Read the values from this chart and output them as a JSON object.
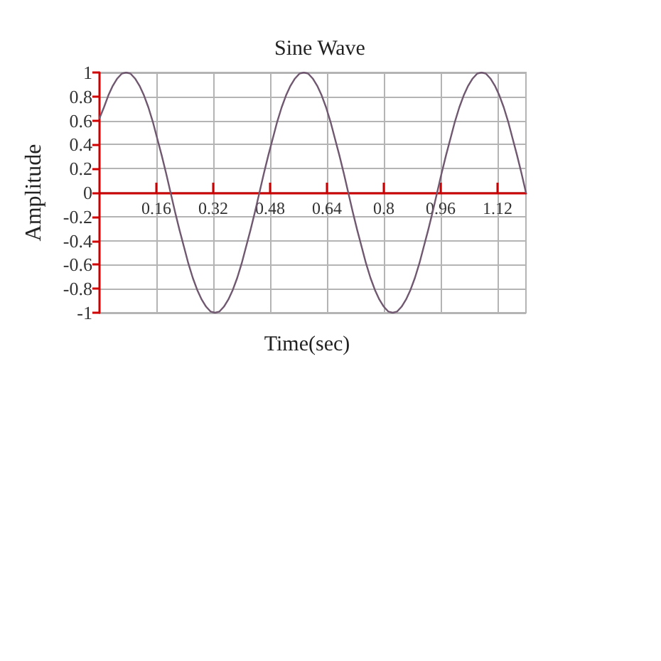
{
  "chart_data": {
    "type": "line",
    "title": "Sine Wave",
    "xlabel": "Time(sec)",
    "ylabel": "Amplitude",
    "x": [
      0,
      0.0125,
      0.025,
      0.0375,
      0.05,
      0.0625,
      0.075,
      0.0875,
      0.1,
      0.1125,
      0.125,
      0.1375,
      0.15,
      0.1625,
      0.175,
      0.1875,
      0.2,
      0.2125,
      0.225,
      0.2375,
      0.25,
      0.2625,
      0.275,
      0.2875,
      0.3,
      0.3125,
      0.325,
      0.3375,
      0.35,
      0.3625,
      0.375,
      0.3875,
      0.4,
      0.4125,
      0.425,
      0.4375,
      0.45,
      0.4625,
      0.475,
      0.4875,
      0.5,
      0.5125,
      0.525,
      0.5375,
      0.55,
      0.5625,
      0.575,
      0.5875,
      0.6,
      0.6125,
      0.625,
      0.6375,
      0.65,
      0.6625,
      0.675,
      0.6875,
      0.7,
      0.7125,
      0.725,
      0.7375,
      0.75,
      0.7625,
      0.775,
      0.7875,
      0.8,
      0.8125,
      0.825,
      0.8375,
      0.85,
      0.8625,
      0.875,
      0.8875,
      0.9,
      0.9125,
      0.925,
      0.9375,
      0.95,
      0.9625,
      0.975,
      0.9875,
      1,
      1.0125,
      1.025,
      1.0375,
      1.05,
      1.0625,
      1.075,
      1.0875,
      1.1,
      1.1125,
      1.125,
      1.1375,
      1.15,
      1.1625,
      1.175,
      1.1875,
      1.2
    ],
    "series": [
      {
        "color": "#705870",
        "values": [
          0.62,
          0.71,
          0.81,
          0.89,
          0.95,
          0.99,
          1,
          0.99,
          0.95,
          0.89,
          0.81,
          0.71,
          0.59,
          0.45,
          0.31,
          0.16,
          0,
          -0.16,
          -0.31,
          -0.45,
          -0.59,
          -0.71,
          -0.81,
          -0.89,
          -0.95,
          -0.99,
          -1,
          -0.99,
          -0.95,
          -0.89,
          -0.81,
          -0.71,
          -0.59,
          -0.45,
          -0.31,
          -0.16,
          0,
          0.16,
          0.31,
          0.45,
          0.59,
          0.71,
          0.81,
          0.89,
          0.95,
          0.99,
          1,
          0.99,
          0.95,
          0.89,
          0.81,
          0.71,
          0.59,
          0.45,
          0.31,
          0.16,
          0,
          -0.16,
          -0.31,
          -0.45,
          -0.59,
          -0.71,
          -0.81,
          -0.89,
          -0.95,
          -0.99,
          -1,
          -0.99,
          -0.95,
          -0.89,
          -0.81,
          -0.71,
          -0.59,
          -0.45,
          -0.31,
          -0.16,
          0,
          0.16,
          0.31,
          0.45,
          0.59,
          0.71,
          0.81,
          0.89,
          0.95,
          0.99,
          1,
          0.99,
          0.95,
          0.89,
          0.81,
          0.71,
          0.59,
          0.45,
          0.31,
          0.16,
          0
        ]
      }
    ],
    "xlim": [
      0,
      1.2
    ],
    "xticks": [
      0.16,
      0.32,
      0.48,
      0.64,
      0.8,
      0.96,
      1.12
    ],
    "ylim": [
      -1,
      1
    ],
    "yticks": [
      -1,
      -0.8,
      -0.6,
      -0.4,
      -0.2,
      0,
      0.2,
      0.4,
      0.6,
      0.8,
      1
    ],
    "grid": true,
    "marker": "none",
    "line_style": "solid"
  }
}
